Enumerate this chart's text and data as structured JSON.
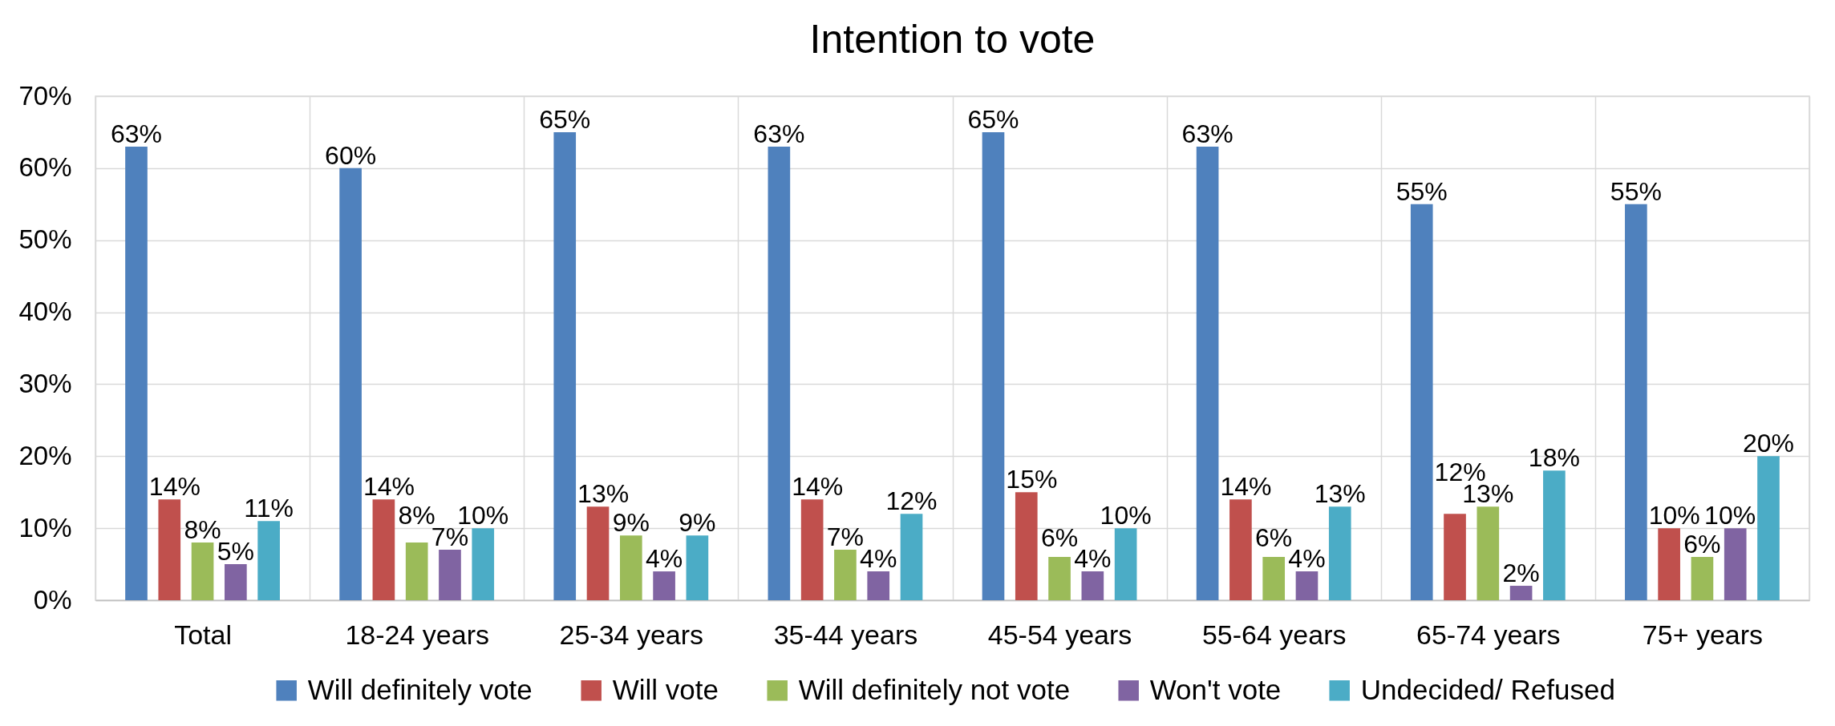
{
  "chart_data": {
    "type": "bar",
    "title": "Intention to vote",
    "categories": [
      "Total",
      "18-24 years",
      "25-34 years",
      "35-44 years",
      "45-54 years",
      "55-64 years",
      "65-74 years",
      "75+ years"
    ],
    "series": [
      {
        "name": "Will definitely vote",
        "color": "#4f81bd",
        "values": [
          63,
          60,
          65,
          63,
          65,
          63,
          55,
          55
        ],
        "value_labels": [
          "63%",
          "60%",
          "65%",
          "63%",
          "65%",
          "63%",
          "55%",
          "55%"
        ]
      },
      {
        "name": "Will vote",
        "color": "#c0504d",
        "values": [
          14,
          14,
          13,
          14,
          15,
          14,
          12,
          10
        ],
        "value_labels": [
          "14%",
          "14%",
          "13%",
          "14%",
          "15%",
          "14%",
          "12%",
          "10%"
        ]
      },
      {
        "name": "Will definitely not vote",
        "color": "#9bbb59",
        "values": [
          8,
          8,
          9,
          7,
          6,
          6,
          13,
          6
        ],
        "value_labels": [
          "8%",
          "8%",
          "9%",
          "7%",
          "6%",
          "6%",
          "13%",
          "6%"
        ]
      },
      {
        "name": "Won't vote",
        "color": "#8064a2",
        "values": [
          5,
          7,
          4,
          4,
          4,
          4,
          2,
          10
        ],
        "value_labels": [
          "5%",
          "7%",
          "4%",
          "4%",
          "4%",
          "4%",
          "2%",
          "10%"
        ]
      },
      {
        "name": "Undecided/ Refused",
        "color": "#4bacc6",
        "values": [
          11,
          10,
          9,
          12,
          10,
          13,
          18,
          20
        ],
        "value_labels": [
          "11%",
          "10%",
          "9%",
          "12%",
          "10%",
          "13%",
          "18%",
          "20%"
        ]
      }
    ],
    "ylim": [
      0,
      70
    ],
    "yticks": [
      {
        "value": 0,
        "label": "0%"
      },
      {
        "value": 10,
        "label": "10%"
      },
      {
        "value": 20,
        "label": "20%"
      },
      {
        "value": 30,
        "label": "30%"
      },
      {
        "value": 40,
        "label": "40%"
      },
      {
        "value": 50,
        "label": "50%"
      },
      {
        "value": 60,
        "label": "60%"
      },
      {
        "value": 70,
        "label": "70%"
      }
    ],
    "grid": true,
    "legend": "bottom"
  }
}
